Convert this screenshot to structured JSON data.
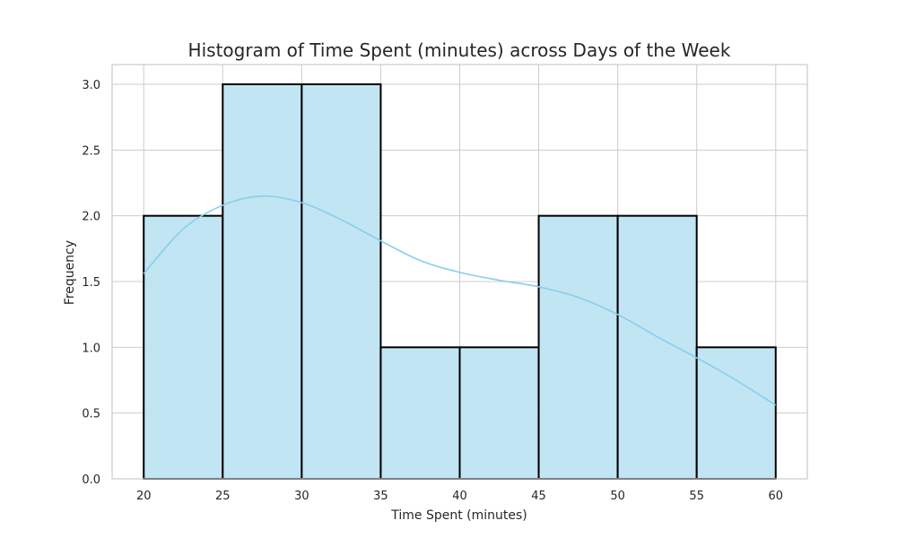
{
  "chart_data": {
    "type": "histogram",
    "title": "Histogram of Time Spent (minutes) across Days of the Week",
    "xlabel": "Time Spent (minutes)",
    "ylabel": "Frequency",
    "xlim": [
      18,
      62
    ],
    "ylim": [
      0,
      3.15
    ],
    "xticks": [
      20,
      25,
      30,
      35,
      40,
      45,
      50,
      55,
      60
    ],
    "yticks": [
      0.0,
      0.5,
      1.0,
      1.5,
      2.0,
      2.5,
      3.0
    ],
    "bins": [
      {
        "start": 20,
        "end": 25,
        "count": 2
      },
      {
        "start": 25,
        "end": 30,
        "count": 3
      },
      {
        "start": 30,
        "end": 35,
        "count": 3
      },
      {
        "start": 35,
        "end": 40,
        "count": 1
      },
      {
        "start": 40,
        "end": 45,
        "count": 1
      },
      {
        "start": 45,
        "end": 50,
        "count": 2
      },
      {
        "start": 50,
        "end": 55,
        "count": 2
      },
      {
        "start": 55,
        "end": 60,
        "count": 1
      }
    ],
    "kde": {
      "x": [
        20,
        22.5,
        25,
        27.5,
        30,
        32.5,
        35,
        37.5,
        40,
        42.5,
        45,
        47.5,
        50,
        52.5,
        55,
        57.5,
        60
      ],
      "y": [
        1.56,
        1.9,
        2.08,
        2.15,
        2.1,
        1.97,
        1.81,
        1.66,
        1.57,
        1.51,
        1.46,
        1.38,
        1.25,
        1.08,
        0.92,
        0.75,
        0.56
      ]
    },
    "grid": true,
    "colors": {
      "bar_fill": "#c1e4f3",
      "bar_edge": "#000000",
      "kde_line": "#87ceeb",
      "grid": "#cccccc",
      "axes_edge": "#cccccc"
    }
  }
}
